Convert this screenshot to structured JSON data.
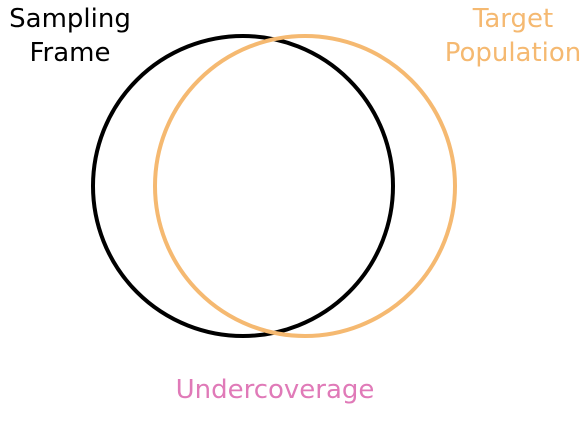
{
  "labels": {
    "sampling_frame_line1": "Sampling",
    "sampling_frame_line2": "Frame",
    "target_population_line1": "Target",
    "target_population_line2": "Population",
    "undercoverage": "Undercoverage"
  },
  "colors": {
    "sampling_frame": "#000000",
    "target_population": "#f5b971",
    "undercoverage": "#e07ab8"
  }
}
